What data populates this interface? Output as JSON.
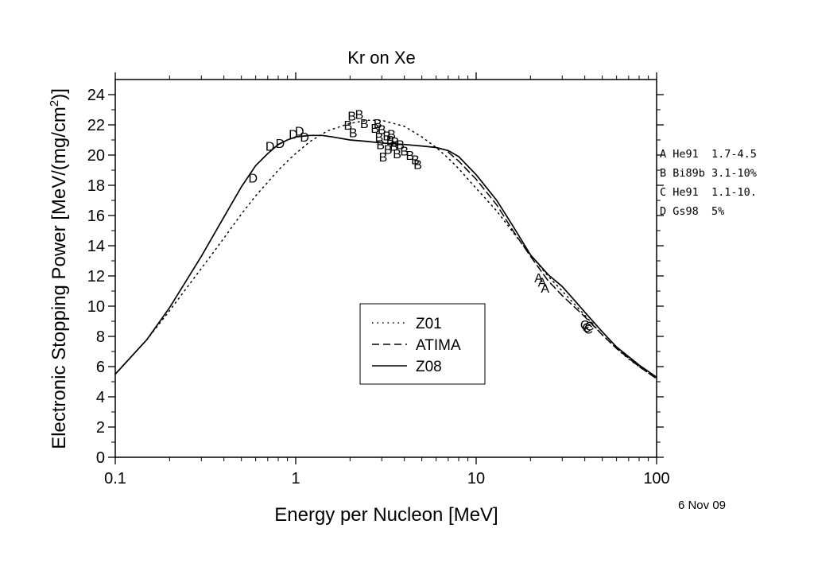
{
  "chart_data": {
    "type": "line",
    "title": "Kr on Xe",
    "xlabel": "Energy per Nucleon [MeV]",
    "ylabel": "Electronic Stopping Power [MeV/(mg/cm",
    "ylabel_sup": "2",
    "ylabel_end": ")]",
    "x_scale": "log",
    "xlim": [
      0.1,
      100
    ],
    "ylim": [
      0,
      25
    ],
    "x_ticks": [
      0.1,
      1,
      10,
      100
    ],
    "x_tick_labels": [
      "0.1",
      "1",
      "10",
      "100"
    ],
    "y_ticks": [
      0,
      2,
      4,
      6,
      8,
      10,
      12,
      14,
      16,
      18,
      20,
      22,
      24
    ],
    "y_tick_labels": [
      "0",
      "2",
      "4",
      "6",
      "8",
      "10",
      "12",
      "14",
      "16",
      "18",
      "20",
      "22",
      "24"
    ],
    "grid": false,
    "legend": {
      "placement": "center-bottom",
      "entries": [
        {
          "label": "Z01",
          "style": "dotted"
        },
        {
          "label": "ATIMA",
          "style": "dashed"
        },
        {
          "label": "Z08",
          "style": "solid"
        }
      ]
    },
    "series": [
      {
        "name": "Z01",
        "style": "dotted",
        "x": [
          0.1,
          0.15,
          0.2,
          0.3,
          0.4,
          0.5,
          0.6,
          0.7,
          0.8,
          0.9,
          1.0,
          1.2,
          1.5,
          2.0,
          2.5,
          3.0,
          4.0,
          5.0,
          6.0,
          7.0,
          8.0,
          10,
          13,
          16,
          20,
          25,
          30,
          40,
          50,
          60,
          70,
          80,
          100
        ],
        "y": [
          5.5,
          7.8,
          9.7,
          12.5,
          14.5,
          16.1,
          17.3,
          18.2,
          19.0,
          19.6,
          20.1,
          20.9,
          21.6,
          22.1,
          22.3,
          22.3,
          21.9,
          21.2,
          20.5,
          19.8,
          19.1,
          17.8,
          16.3,
          14.9,
          13.4,
          12.0,
          11.0,
          9.4,
          8.1,
          7.2,
          6.5,
          6.0,
          5.2
        ]
      },
      {
        "name": "ATIMA",
        "style": "dashed",
        "x": [
          7,
          8,
          10,
          13,
          16,
          20,
          25,
          30,
          40,
          50,
          60,
          80,
          100
        ],
        "y": [
          20.2,
          19.6,
          18.4,
          16.7,
          15.0,
          13.3,
          11.7,
          10.7,
          9.3,
          8.1,
          7.2,
          6.0,
          5.2
        ]
      },
      {
        "name": "Z08",
        "style": "solid",
        "x": [
          0.1,
          0.15,
          0.2,
          0.3,
          0.4,
          0.5,
          0.6,
          0.7,
          0.8,
          0.9,
          1.0,
          1.2,
          1.4,
          1.6,
          2.0,
          2.5,
          3.0,
          4.0,
          5.0,
          6.0,
          7.0,
          8.0,
          10,
          13,
          16,
          20,
          25,
          30,
          35,
          40,
          50,
          60,
          80,
          100
        ],
        "y": [
          5.5,
          7.8,
          9.9,
          13.3,
          15.9,
          17.9,
          19.3,
          20.1,
          20.7,
          21.0,
          21.2,
          21.3,
          21.3,
          21.2,
          21.0,
          20.9,
          20.8,
          20.7,
          20.6,
          20.5,
          20.3,
          19.9,
          18.7,
          17.0,
          15.3,
          13.4,
          12.1,
          11.3,
          10.4,
          9.6,
          8.3,
          7.3,
          6.1,
          5.3
        ]
      }
    ],
    "data_points": [
      {
        "code": "D",
        "x": 0.58,
        "y": 18.5
      },
      {
        "code": "D",
        "x": 0.72,
        "y": 20.6
      },
      {
        "code": "D",
        "x": 0.82,
        "y": 20.8
      },
      {
        "code": "D",
        "x": 0.97,
        "y": 21.4
      },
      {
        "code": "D",
        "x": 1.05,
        "y": 21.6
      },
      {
        "code": "D",
        "x": 1.12,
        "y": 21.2
      },
      {
        "code": "B",
        "x": 1.95,
        "y": 22.0
      },
      {
        "code": "B",
        "x": 2.05,
        "y": 22.6
      },
      {
        "code": "B",
        "x": 2.08,
        "y": 21.5
      },
      {
        "code": "B",
        "x": 2.25,
        "y": 22.7
      },
      {
        "code": "B",
        "x": 2.4,
        "y": 22.1
      },
      {
        "code": "B",
        "x": 2.75,
        "y": 21.8
      },
      {
        "code": "B",
        "x": 2.85,
        "y": 22.1
      },
      {
        "code": "B",
        "x": 2.9,
        "y": 21.2
      },
      {
        "code": "B",
        "x": 2.95,
        "y": 20.7
      },
      {
        "code": "B",
        "x": 3.0,
        "y": 21.7
      },
      {
        "code": "B",
        "x": 3.05,
        "y": 19.9
      },
      {
        "code": "B",
        "x": 3.2,
        "y": 21.3
      },
      {
        "code": "B",
        "x": 3.25,
        "y": 20.4
      },
      {
        "code": "B",
        "x": 3.35,
        "y": 21.0
      },
      {
        "code": "B",
        "x": 3.4,
        "y": 21.4
      },
      {
        "code": "B",
        "x": 3.5,
        "y": 20.6
      },
      {
        "code": "B",
        "x": 3.55,
        "y": 20.9
      },
      {
        "code": "B",
        "x": 3.65,
        "y": 20.1
      },
      {
        "code": "B",
        "x": 3.8,
        "y": 20.7
      },
      {
        "code": "B",
        "x": 4.0,
        "y": 20.3
      },
      {
        "code": "B",
        "x": 4.3,
        "y": 20.0
      },
      {
        "code": "B",
        "x": 4.6,
        "y": 19.7
      },
      {
        "code": "B",
        "x": 4.75,
        "y": 19.4
      },
      {
        "code": "A",
        "x": 22.2,
        "y": 11.9
      },
      {
        "code": "A",
        "x": 23.2,
        "y": 11.6
      },
      {
        "code": "A",
        "x": 24.1,
        "y": 11.2
      },
      {
        "code": "C",
        "x": 40.0,
        "y": 8.8
      },
      {
        "code": "C",
        "x": 41.0,
        "y": 8.6
      },
      {
        "code": "C",
        "x": 41.8,
        "y": 8.5
      },
      {
        "code": "C",
        "x": 42.5,
        "y": 8.7
      }
    ],
    "dataset_legend": [
      {
        "code": "A",
        "text": "A He91  1.7-4.5"
      },
      {
        "code": "B",
        "text": "B Bi89b 3.1-10%"
      },
      {
        "code": "C",
        "text": "C He91  1.1-10."
      },
      {
        "code": "D",
        "text": "D Gs98  5%"
      }
    ],
    "date_label": "6 Nov 09"
  }
}
